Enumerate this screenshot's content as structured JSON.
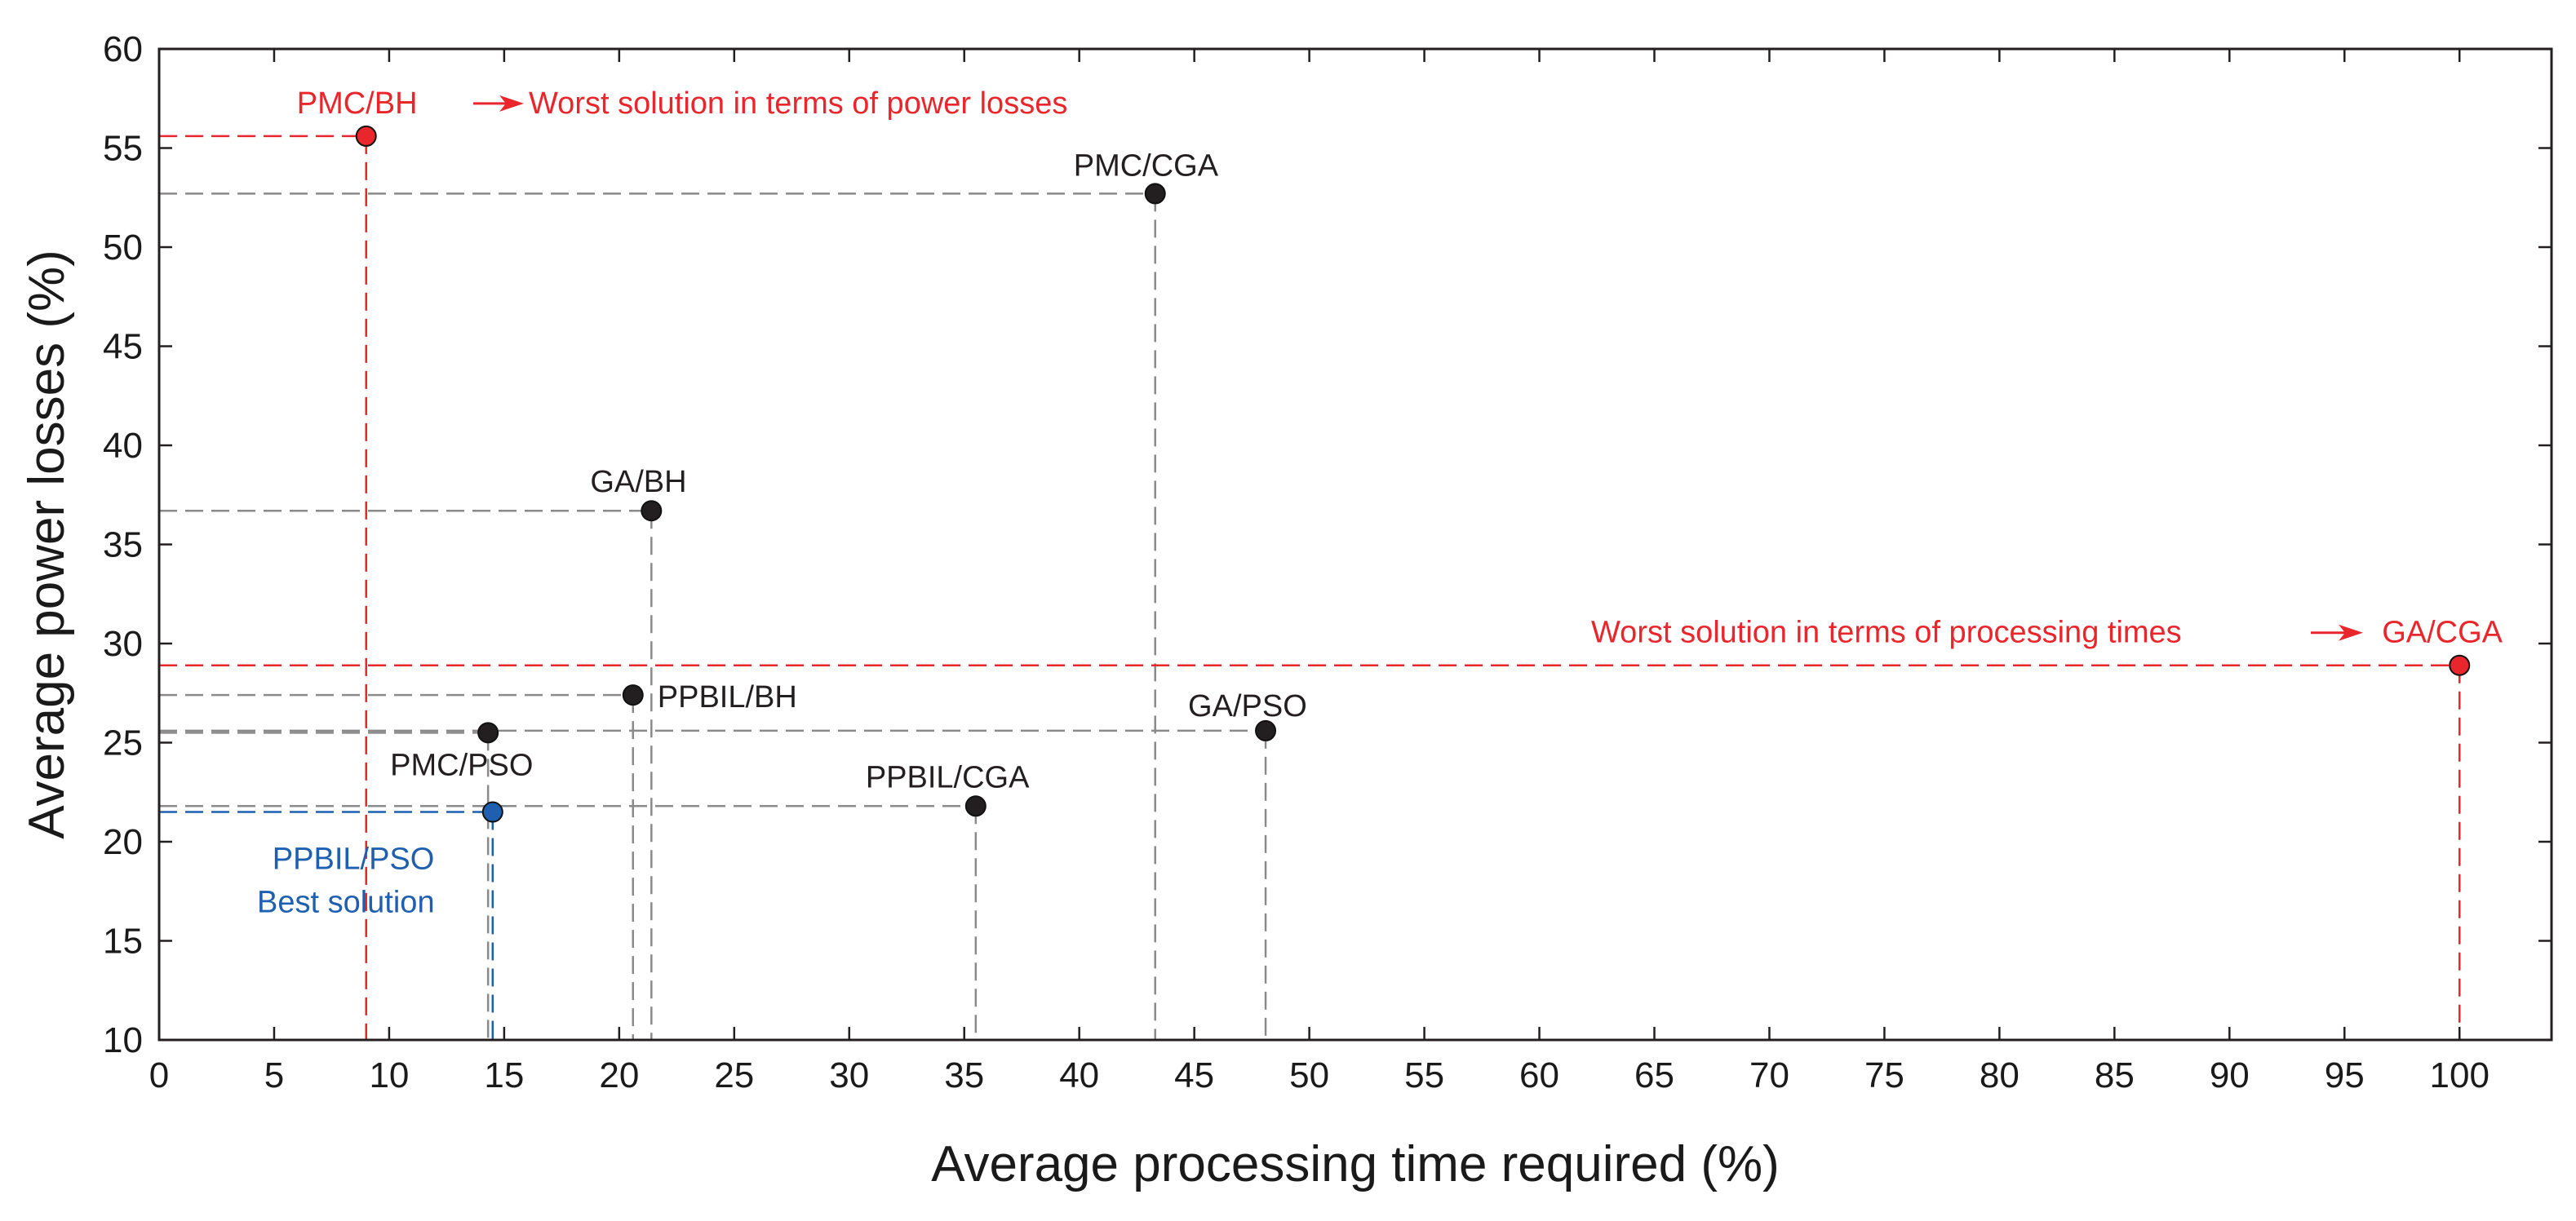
{
  "chart_data": {
    "type": "scatter",
    "title": "",
    "xlabel": "Average processing time required (%)",
    "ylabel": "Average power losses  (%)",
    "xlim": [
      0,
      104
    ],
    "ylim": [
      10,
      60
    ],
    "xticks": [
      0,
      5,
      10,
      15,
      20,
      25,
      30,
      35,
      40,
      45,
      50,
      55,
      60,
      65,
      70,
      75,
      80,
      85,
      90,
      95,
      100
    ],
    "yticks": [
      10,
      15,
      20,
      25,
      30,
      35,
      40,
      45,
      50,
      55,
      60
    ],
    "grid": false,
    "points": [
      {
        "name": "PMC/BH",
        "x": 9,
        "y": 55.6,
        "color": "#e8262b"
      },
      {
        "name": "PMC/CGA",
        "x": 43.3,
        "y": 52.7,
        "color": "#231f20"
      },
      {
        "name": "GA/BH",
        "x": 21.4,
        "y": 36.7,
        "color": "#231f20"
      },
      {
        "name": "GA/CGA",
        "x": 100,
        "y": 28.9,
        "color": "#e8262b"
      },
      {
        "name": "PPBIL/BH",
        "x": 20.6,
        "y": 27.4,
        "color": "#231f20"
      },
      {
        "name": "GA/PSO",
        "x": 48.1,
        "y": 25.6,
        "color": "#231f20"
      },
      {
        "name": "PMC/PSO",
        "x": 14.3,
        "y": 25.5,
        "color": "#231f20"
      },
      {
        "name": "PPBIL/CGA",
        "x": 35.5,
        "y": 21.8,
        "color": "#231f20"
      },
      {
        "name": "PPBIL/PSO",
        "x": 14.5,
        "y": 21.5,
        "color": "#1f5fb0"
      }
    ],
    "annotations": {
      "worst_losses": "Worst solution in terms of power losses",
      "worst_time": "Worst solution in terms of  processing times",
      "best": "Best solution"
    }
  }
}
